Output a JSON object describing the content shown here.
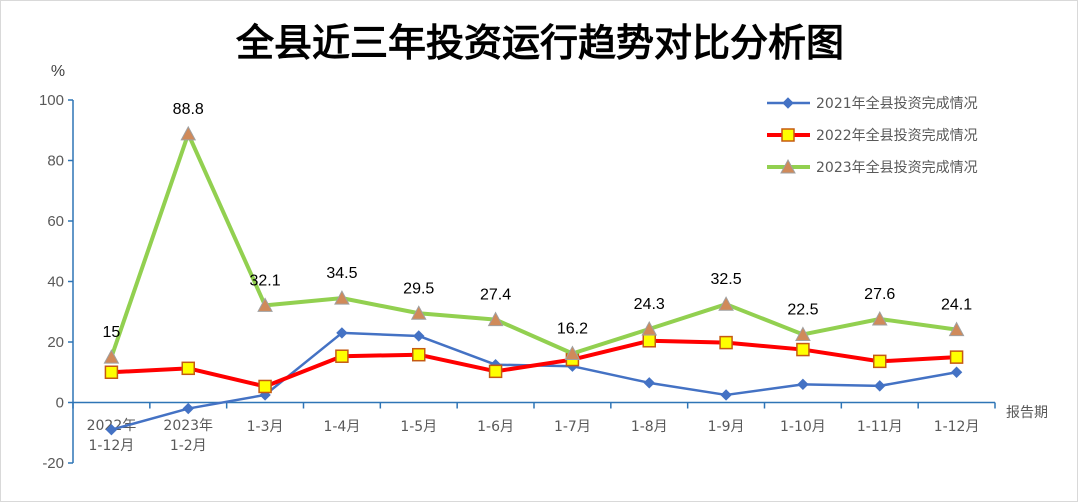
{
  "chart_data": {
    "type": "line",
    "title": "全县近三年投资运行趋势对比分析图",
    "ylabel": "%",
    "xlabel": "报告期",
    "ylim": [
      -20,
      100
    ],
    "yticks": [
      -20,
      0,
      20,
      40,
      60,
      80,
      100
    ],
    "grid": false,
    "legend_position": "top-right",
    "categories": [
      [
        "2022年",
        "1-12月"
      ],
      [
        "2023年",
        "1-2月"
      ],
      [
        "1-3月"
      ],
      [
        "1-4月"
      ],
      [
        "1-5月"
      ],
      [
        "1-6月"
      ],
      [
        "1-7月"
      ],
      [
        "1-8月"
      ],
      [
        "1-9月"
      ],
      [
        "1-10月"
      ],
      [
        "1-11月"
      ],
      [
        "1-12月"
      ]
    ],
    "series": [
      {
        "name": "2021年全县投资完成情况",
        "color": "#4472c4",
        "marker": "diamond",
        "values": [
          -9,
          -2,
          2.5,
          23,
          22,
          12.5,
          12,
          6.5,
          2.5,
          6,
          5.5,
          10
        ]
      },
      {
        "name": "2022年全县投资完成情况",
        "color": "#ff0000",
        "marker": "square",
        "values": [
          10,
          11.3,
          5.3,
          15.3,
          15.8,
          10.3,
          14.2,
          20.4,
          19.8,
          17.5,
          13.6,
          15
        ]
      },
      {
        "name": "2023年全县投资完成情况",
        "color": "#92d050",
        "marker": "triangle",
        "values": [
          15,
          88.8,
          32.1,
          34.5,
          29.5,
          27.4,
          16.2,
          24.3,
          32.5,
          22.5,
          27.6,
          24.1
        ],
        "labels": [
          "15",
          "88.8",
          "32.1",
          "34.5",
          "29.5",
          "27.4",
          "16.2",
          "24.3",
          "32.5",
          "22.5",
          "27.6",
          "24.1"
        ]
      }
    ]
  }
}
